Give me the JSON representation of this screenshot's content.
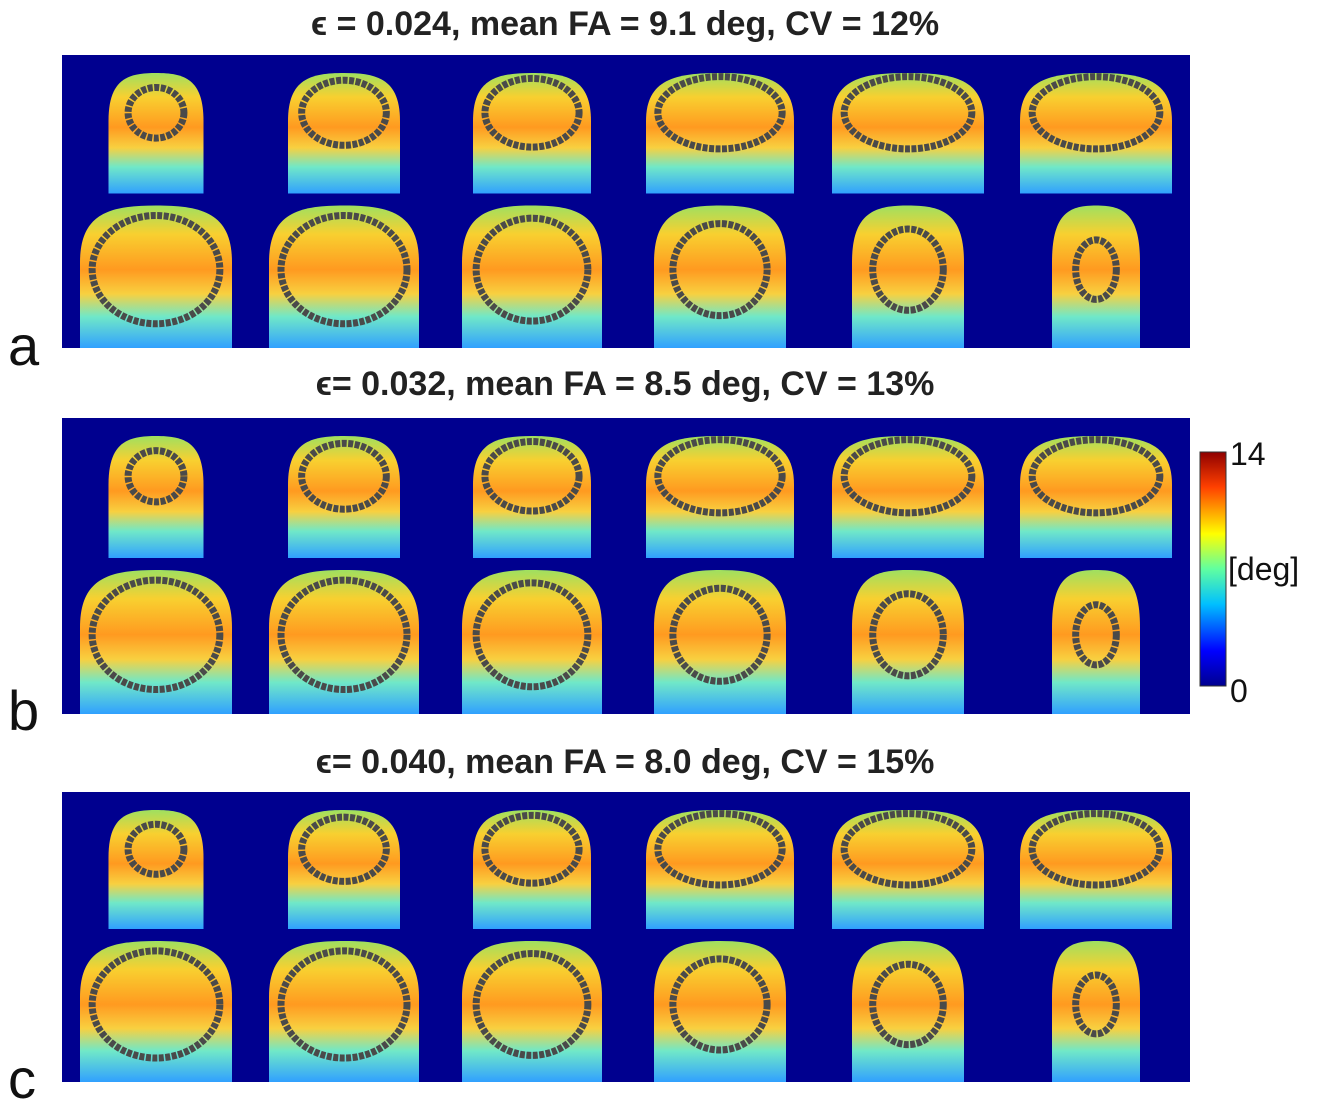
{
  "panels": [
    {
      "label": "a",
      "title": "ϵ = 0.024, mean FA = 9.1 deg, CV = 12%"
    },
    {
      "label": "b",
      "title": "ϵ= 0.032, mean FA = 8.5 deg, CV = 13%"
    },
    {
      "label": "c",
      "title": "ϵ= 0.040, mean FA = 8.0 deg, CV = 15%"
    }
  ],
  "colorbar": {
    "max": 14,
    "min": 0,
    "label": "[deg]"
  }
}
